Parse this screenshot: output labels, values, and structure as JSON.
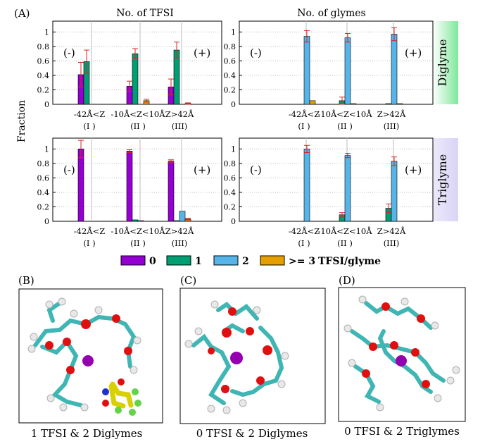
{
  "figure": {
    "label_A": "(A)",
    "label_B": "(B)",
    "label_C": "(C)",
    "label_D": "(D)",
    "ylabel": "Fraction",
    "col_titles": [
      "No. of TFSI",
      "No. of glymes"
    ],
    "row_labels": [
      "Diglyme",
      "Triglyme"
    ],
    "row_label_colors": [
      "#7ee89a",
      "#d9d4f5"
    ],
    "sign_minus": "(-)",
    "sign_plus": "(+)",
    "legend_suffix": "TFSI/glyme",
    "captions": [
      "1 TFSI & 2 Diglymes",
      "0 TFSI & 2 Diglymes",
      "0 TFSI & 2 Triglymes"
    ]
  },
  "chart_data": [
    {
      "type": "bar",
      "title": "No. of TFSI",
      "row": "Diglyme",
      "ylabel": "Fraction",
      "ylim": [
        0,
        1.15
      ],
      "yticks": [
        0,
        0.2,
        0.4,
        0.6,
        0.8,
        1
      ],
      "categories": [
        "-42Å<Z",
        "-10Å<Z<10Å",
        "Z>42Å"
      ],
      "category_ids": [
        "(I )",
        "(II )",
        "(III)"
      ],
      "series": [
        {
          "name": "0",
          "color": "#9400d3",
          "values": [
            0.41,
            0.25,
            0.24
          ],
          "errors": [
            0.17,
            0.07,
            0.11
          ]
        },
        {
          "name": "1",
          "color": "#009e73",
          "values": [
            0.59,
            0.7,
            0.75
          ],
          "errors": [
            0.16,
            0.07,
            0.11
          ]
        },
        {
          "name": "2",
          "color": "#56b4e9",
          "values": [
            0.0,
            0.0,
            0.0
          ],
          "errors": [
            0,
            0,
            0
          ]
        },
        {
          "name": ">= 3",
          "color": "#e69f00",
          "values": [
            0.0,
            0.05,
            0.01
          ],
          "errors": [
            0,
            0.02,
            0.01
          ]
        }
      ]
    },
    {
      "type": "bar",
      "title": "No. of glymes",
      "row": "Diglyme",
      "ylim": [
        0,
        1.15
      ],
      "yticks": [
        0,
        0.2,
        0.4,
        0.6,
        0.8,
        1
      ],
      "categories": [
        "-42Å<Z",
        "-10Å<Z<10Å",
        "Z>42Å"
      ],
      "category_ids": [
        "(I )",
        "(II )",
        "(III)"
      ],
      "series": [
        {
          "name": "0",
          "color": "#9400d3",
          "values": [
            0.0,
            0.0,
            0.0
          ],
          "errors": [
            0,
            0,
            0
          ]
        },
        {
          "name": "1",
          "color": "#009e73",
          "values": [
            0.0,
            0.05,
            0.01
          ],
          "errors": [
            0,
            0.05,
            0
          ]
        },
        {
          "name": "2",
          "color": "#56b4e9",
          "values": [
            0.94,
            0.92,
            0.97
          ],
          "errors": [
            0.08,
            0.06,
            0.09
          ]
        },
        {
          "name": ">= 3",
          "color": "#e69f00",
          "values": [
            0.05,
            0.01,
            0.01
          ],
          "errors": [
            0,
            0,
            0
          ]
        }
      ]
    },
    {
      "type": "bar",
      "title": "No. of TFSI",
      "row": "Triglyme",
      "ylabel": "Fraction",
      "ylim": [
        0,
        1.15
      ],
      "yticks": [
        0,
        0.2,
        0.4,
        0.6,
        0.8,
        1
      ],
      "categories": [
        "-42Å<Z",
        "-10Å<Z<10Å",
        "Z>42Å"
      ],
      "category_ids": [
        "(I )",
        "(II )",
        "(III)"
      ],
      "series": [
        {
          "name": "0",
          "color": "#9400d3",
          "values": [
            1.0,
            0.97,
            0.83
          ],
          "errors": [
            0.12,
            0.02,
            0.02
          ]
        },
        {
          "name": "1",
          "color": "#009e73",
          "values": [
            0.0,
            0.02,
            0.01
          ],
          "errors": [
            0,
            0,
            0
          ]
        },
        {
          "name": "2",
          "color": "#56b4e9",
          "values": [
            0.0,
            0.01,
            0.14
          ],
          "errors": [
            0,
            0,
            0
          ]
        },
        {
          "name": ">= 3",
          "color": "#e69f00",
          "values": [
            0.0,
            0.0,
            0.03
          ],
          "errors": [
            0,
            0,
            0.01
          ]
        }
      ]
    },
    {
      "type": "bar",
      "title": "No. of glymes",
      "row": "Triglyme",
      "ylim": [
        0,
        1.15
      ],
      "yticks": [
        0,
        0.2,
        0.4,
        0.6,
        0.8,
        1
      ],
      "categories": [
        "-42Å<Z",
        "-10Å<Z<10Å",
        "Z>42Å"
      ],
      "category_ids": [
        "(I )",
        "(II )",
        "(III)"
      ],
      "series": [
        {
          "name": "0",
          "color": "#9400d3",
          "values": [
            0.0,
            0.0,
            0.0
          ],
          "errors": [
            0,
            0,
            0
          ]
        },
        {
          "name": "1",
          "color": "#009e73",
          "values": [
            0.0,
            0.09,
            0.18
          ],
          "errors": [
            0,
            0.03,
            0.06
          ]
        },
        {
          "name": "2",
          "color": "#56b4e9",
          "values": [
            1.0,
            0.91,
            0.83
          ],
          "errors": [
            0.05,
            0.03,
            0.06
          ]
        },
        {
          "name": ">= 3",
          "color": "#e69f00",
          "values": [
            0.0,
            0.0,
            0.0
          ],
          "errors": [
            0,
            0,
            0
          ]
        }
      ]
    }
  ]
}
